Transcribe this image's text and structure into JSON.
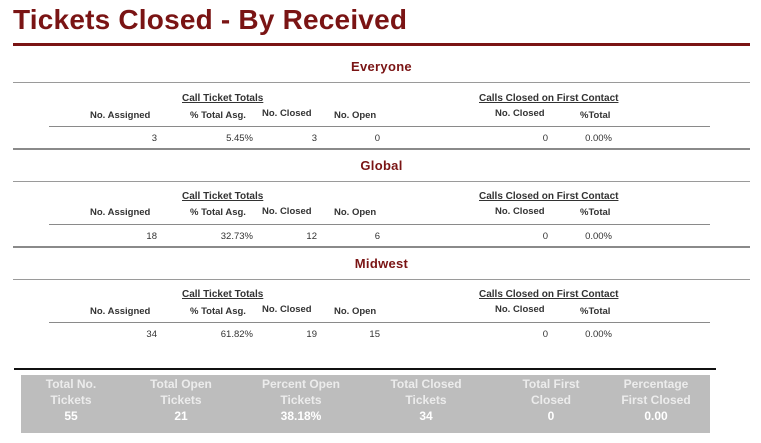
{
  "report": {
    "title": "Tickets Closed - By Received"
  },
  "labels": {
    "call_ticket_totals": "Call Ticket Totals",
    "calls_closed_first_contact": "Calls Closed on First Contact",
    "no_assigned": "No. Assigned",
    "pct_total_asg": "% Total Asg.",
    "no_closed": "No. Closed",
    "no_open": "No. Open",
    "fc_no_closed": "No. Closed",
    "fc_pct_total": "%Total"
  },
  "sections": [
    {
      "name": "Everyone",
      "no_assigned": "3",
      "pct_total_asg": "5.45%",
      "no_closed": "3",
      "no_open": "0",
      "fc_no_closed": "0",
      "fc_pct_total": "0.00%"
    },
    {
      "name": "Global",
      "no_assigned": "18",
      "pct_total_asg": "32.73%",
      "no_closed": "12",
      "no_open": "6",
      "fc_no_closed": "0",
      "fc_pct_total": "0.00%"
    },
    {
      "name": "Midwest",
      "no_assigned": "34",
      "pct_total_asg": "61.82%",
      "no_closed": "19",
      "no_open": "15",
      "fc_no_closed": "0",
      "fc_pct_total": "0.00%"
    }
  ],
  "totals": [
    {
      "line1": "Total No.",
      "line2": "Tickets",
      "value": "55"
    },
    {
      "line1": "Total Open",
      "line2": "Tickets",
      "value": "21"
    },
    {
      "line1": "Percent Open",
      "line2": "Tickets",
      "value": "38.18%"
    },
    {
      "line1": "Total Closed",
      "line2": "Tickets",
      "value": "34"
    },
    {
      "line1": "Total First",
      "line2": "Closed",
      "value": "0"
    },
    {
      "line1": "Percentage",
      "line2": "First Closed",
      "value": "0.00"
    }
  ],
  "colors": {
    "accent": "#7a1414",
    "totals_bg": "#bdbdbd"
  }
}
